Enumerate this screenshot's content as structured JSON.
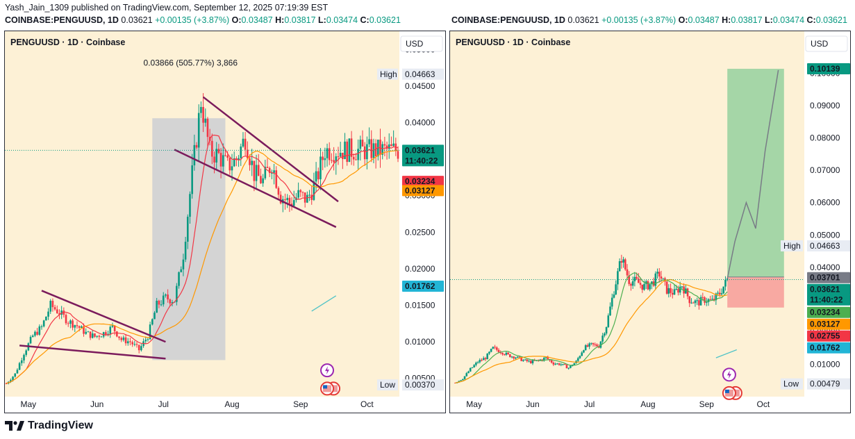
{
  "header": {
    "publisher": "Yash_Jain_1309 published on TradingView.com, September 12, 2025 07:19:39 EST",
    "symbol": "COINBASE:PENGUUSD, 1D",
    "price": "0.03621",
    "change": "+0.00135 (+3.87%)",
    "o_label": "O:",
    "o": "0.03487",
    "h_label": "H:",
    "h": "0.03817",
    "l_label": "L:",
    "l": "0.03474",
    "c_label": "C:",
    "c": "0.03621"
  },
  "footer": {
    "brand": "TradingView"
  },
  "colors": {
    "bg_left": "#fdf1d6",
    "bg_right": "#fdf1d6",
    "up": "#089981",
    "down": "#f23645",
    "ma_fast": "#f23645",
    "ma_slow": "#ff9800",
    "ma_green": "#4caf50",
    "trend": "#7b1b5c",
    "box_gray": "#d4d4d4",
    "target_green": "#a5d6a7",
    "stop_red": "#f8a9a2",
    "price_tag": "#089981",
    "ma1_tag": "#f23645",
    "ma2_tag": "#ff9800",
    "cyan_tag": "#22b5d6",
    "gray_tag": "#787b86"
  },
  "chart_data": [
    {
      "type": "candlestick",
      "title": "PENGUUSD · 1D · Coinbase",
      "currency": "USD",
      "x_ticks": [
        "May",
        "Jun",
        "Jul",
        "Aug",
        "Sep",
        "Oct"
      ],
      "y_ticks": [
        "0.05000",
        "0.04500",
        "0.04000",
        "0.03500",
        "0.03000",
        "0.02500",
        "0.02000",
        "0.01500",
        "0.01000",
        "0.00500"
      ],
      "ylim": [
        0.0025,
        0.0525
      ],
      "date_range": [
        "2025-04-21",
        "2025-10-15"
      ],
      "high_label": "High",
      "high": "0.04663",
      "low_label": "Low",
      "low": "0.00370",
      "last_price": "0.03621",
      "countdown": "11:40:22",
      "ma_fast_value": "0.03234",
      "ma_slow_value": "0.03127",
      "extra_value": "0.01762",
      "measure_label": "0.03866 (505.77%) 3,866",
      "series": [
        {
          "name": "close",
          "values": [
            [
              "2025-04-21",
              0.0043
            ],
            [
              "2025-04-25",
              0.0056
            ],
            [
              "2025-04-29",
              0.0085
            ],
            [
              "2025-05-03",
              0.0108
            ],
            [
              "2025-05-07",
              0.012
            ],
            [
              "2025-05-11",
              0.015
            ],
            [
              "2025-05-15",
              0.014
            ],
            [
              "2025-05-19",
              0.0128
            ],
            [
              "2025-05-23",
              0.0122
            ],
            [
              "2025-05-27",
              0.0112
            ],
            [
              "2025-05-31",
              0.0107
            ],
            [
              "2025-06-04",
              0.0112
            ],
            [
              "2025-06-08",
              0.012
            ],
            [
              "2025-06-12",
              0.0103
            ],
            [
              "2025-06-16",
              0.01
            ],
            [
              "2025-06-20",
              0.0089
            ],
            [
              "2025-06-24",
              0.0108
            ],
            [
              "2025-06-28",
              0.015
            ],
            [
              "2025-07-02",
              0.016
            ],
            [
              "2025-07-06",
              0.0157
            ],
            [
              "2025-07-10",
              0.022
            ],
            [
              "2025-07-14",
              0.033
            ],
            [
              "2025-07-18",
              0.043
            ],
            [
              "2025-07-22",
              0.036
            ],
            [
              "2025-07-26",
              0.0355
            ],
            [
              "2025-07-30",
              0.034
            ],
            [
              "2025-08-03",
              0.035
            ],
            [
              "2025-08-07",
              0.038
            ],
            [
              "2025-08-11",
              0.033
            ],
            [
              "2025-08-15",
              0.032
            ],
            [
              "2025-08-19",
              0.0345
            ],
            [
              "2025-08-23",
              0.03
            ],
            [
              "2025-08-27",
              0.029
            ],
            [
              "2025-08-31",
              0.03
            ],
            [
              "2025-09-04",
              0.0295
            ],
            [
              "2025-09-08",
              0.032
            ],
            [
              "2025-09-12",
              0.0362
            ]
          ]
        }
      ]
    },
    {
      "type": "candlestick",
      "title": "PENGUUSD · 1D · Coinbase",
      "currency": "USD",
      "x_ticks": [
        "May",
        "Jun",
        "Jul",
        "Aug",
        "Sep",
        "Oct"
      ],
      "y_ticks": [
        "0.11000",
        "0.10000",
        "0.09000",
        "0.08000",
        "0.07000",
        "0.06000",
        "0.05000",
        "0.04000",
        "0.03000",
        "0.02000",
        "0.01000"
      ],
      "ylim": [
        0.0,
        0.113
      ],
      "date_range": [
        "2025-04-19",
        "2025-10-22"
      ],
      "high_label": "High",
      "high": "0.04663",
      "low_label": "Low",
      "low": "0.00479",
      "last_price": "0.03621",
      "countdown": "11:40:22",
      "target_value": "0.10139",
      "entry_value": "0.03701",
      "ma_fast_value": "0.03234",
      "ma_slow_value": "0.03127",
      "stop_value": "0.02755",
      "extra_value": "0.01762",
      "projection": [
        [
          "2025-09-12",
          0.0365
        ],
        [
          "2025-09-16",
          0.048
        ],
        [
          "2025-09-22",
          0.06
        ],
        [
          "2025-09-27",
          0.052
        ],
        [
          "2025-10-02",
          0.076
        ],
        [
          "2025-10-09",
          0.101
        ]
      ]
    }
  ]
}
